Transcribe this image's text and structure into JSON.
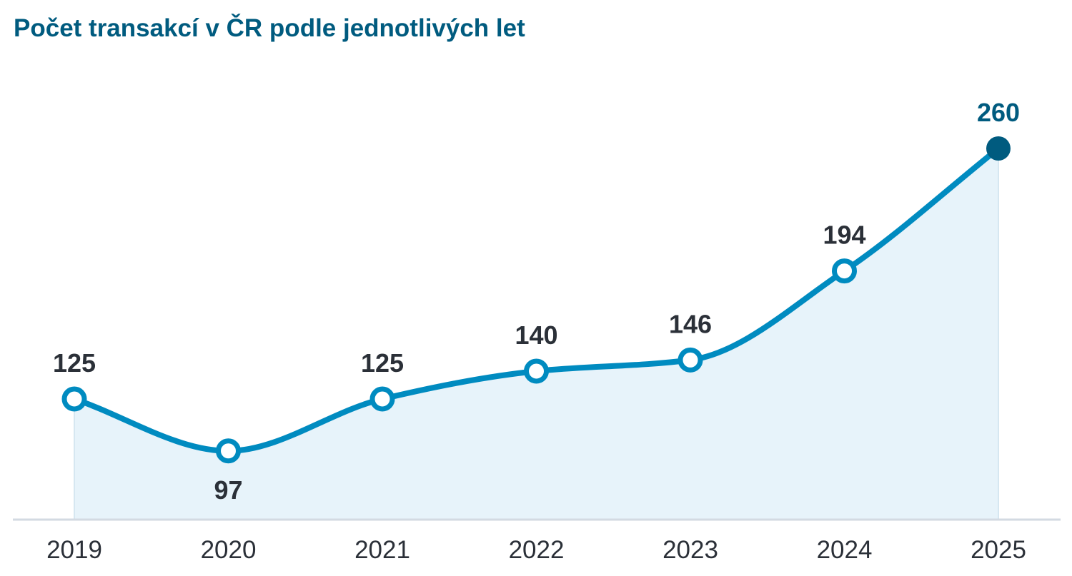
{
  "chart_data": {
    "type": "area",
    "title": "Počet transakcí v ČR podle jednotlivých let",
    "xlabel": "",
    "ylabel": "",
    "categories": [
      "2019",
      "2020",
      "2021",
      "2022",
      "2023",
      "2024",
      "2025"
    ],
    "values": [
      125,
      97,
      125,
      140,
      146,
      194,
      260
    ],
    "data_labels": [
      "125",
      "97",
      "125",
      "140",
      "146",
      "194",
      "260"
    ],
    "highlight_index": 6,
    "grid": false,
    "legend": "none",
    "colors": {
      "line": "#008bc0",
      "fill": "#e7f3fa",
      "highlight": "#005b7f",
      "axis": "#d3dae2",
      "text": "#2b3038"
    }
  }
}
